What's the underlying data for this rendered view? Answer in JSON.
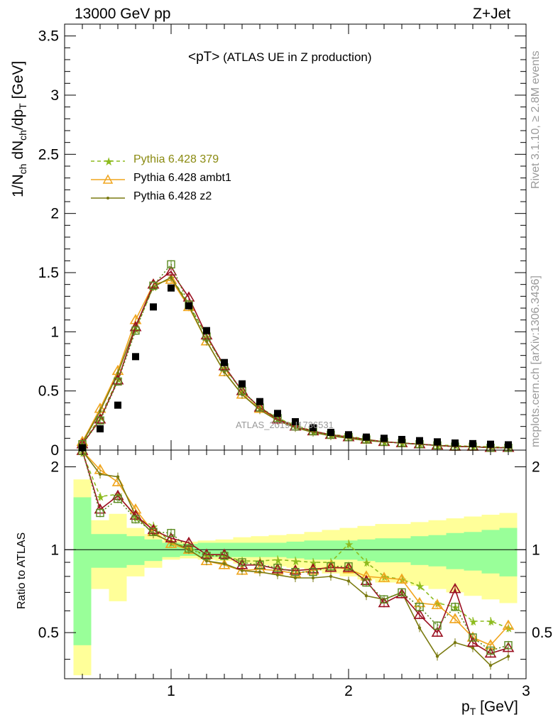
{
  "header": {
    "left": "13000 GeV pp",
    "right": "Z+Jet"
  },
  "side_labels": {
    "rivet": "Rivet 3.1.10, ≥ 2.8M events",
    "mcplots": "mcplots.cern.ch [arXiv:1306.3436]"
  },
  "watermark": "ATLAS_2019_I1736531",
  "annotation": {
    "main": "<pT>",
    "sub": " (ATLAS UE in Z production)"
  },
  "axis": {
    "main_ylabel_parts": {
      "a": "1/N",
      "b": "ch",
      "c": " dN",
      "d": "ch",
      "e": "/dp",
      "f": "T",
      "g": " [GeV]"
    },
    "ratio_ylabel": "Ratio to ATLAS",
    "xlabel_parts": {
      "a": "p",
      "b": "T",
      "c": " [GeV]"
    }
  },
  "colors": {
    "band_inner": "#99ff99",
    "band_outer": "#ffff99",
    "data": "#000000",
    "p379": "#8dbb1e",
    "ambt1": "#f0a51e",
    "z2": "#7a7a10",
    "dark": "#9a1020",
    "green_dark": "#5a8a20"
  },
  "legend": [
    {
      "label": "Pythia 6.428 379",
      "color": "#8dbb1e",
      "style": "dashed",
      "marker": "star"
    },
    {
      "label": "Pythia 6.428 ambt1",
      "color": "#f0a51e",
      "style": "solid",
      "marker": "triangle"
    },
    {
      "label": "Pythia 6.428 z2",
      "color": "#7a7a10",
      "style": "solid",
      "marker": "dot"
    }
  ],
  "chart_data": {
    "type": "line",
    "x_range": [
      0.4,
      3.0
    ],
    "main_ylim": [
      0,
      3.6
    ],
    "ratio_ylim": [
      0.34,
      2.3
    ],
    "x_ticks": [
      1,
      2,
      3
    ],
    "main_y_ticks": [
      0,
      0.5,
      1,
      1.5,
      2,
      2.5,
      3,
      3.5
    ],
    "main_y_tick_labels": [
      "0",
      "0.5",
      "1",
      "1.5",
      "2",
      "2.5",
      "3",
      "3.5"
    ],
    "ratio_y_ticks": [
      0.5,
      1,
      2
    ],
    "ratio_y_tick_labels": [
      "0.5",
      "1",
      "2"
    ],
    "x": [
      0.5,
      0.6,
      0.7,
      0.8,
      0.9,
      1.0,
      1.1,
      1.2,
      1.3,
      1.4,
      1.5,
      1.6,
      1.7,
      1.8,
      1.9,
      2.0,
      2.1,
      2.2,
      2.3,
      2.4,
      2.5,
      2.6,
      2.7,
      2.8,
      2.9
    ],
    "atlas": [
      0.02,
      0.18,
      0.38,
      0.79,
      1.21,
      1.37,
      1.22,
      1.01,
      0.74,
      0.56,
      0.41,
      0.31,
      0.24,
      0.19,
      0.15,
      0.13,
      0.11,
      0.1,
      0.09,
      0.08,
      0.07,
      0.06,
      0.055,
      0.05,
      0.045
    ],
    "band_inner_pct": [
      0.55,
      0.14,
      0.14,
      0.12,
      0.09,
      0.06,
      0.05,
      0.06,
      0.06,
      0.06,
      0.06,
      0.06,
      0.07,
      0.08,
      0.08,
      0.08,
      0.09,
      0.1,
      0.1,
      0.12,
      0.13,
      0.15,
      0.16,
      0.18,
      0.2
    ],
    "band_outer_pct": [
      0.8,
      0.28,
      0.35,
      0.2,
      0.14,
      0.08,
      0.07,
      0.08,
      0.09,
      0.11,
      0.12,
      0.13,
      0.14,
      0.16,
      0.18,
      0.2,
      0.22,
      0.24,
      0.24,
      0.26,
      0.28,
      0.3,
      0.32,
      0.34,
      0.36
    ],
    "main_series": [
      {
        "label": "Pythia 6.428 379",
        "color": "#8dbb1e",
        "dash": "5,4",
        "marker": "star",
        "values": [
          0.05,
          0.28,
          0.6,
          1.02,
          1.38,
          1.46,
          1.24,
          0.96,
          0.7,
          0.5,
          0.36,
          0.27,
          0.21,
          0.16,
          0.13,
          0.12,
          0.09,
          0.07,
          0.06,
          0.05,
          0.04,
          0.04,
          0.03,
          0.03,
          0.02
        ]
      },
      {
        "label": "Pythia 6.428 ambt1",
        "color": "#f0a51e",
        "dash": "",
        "marker": "triangle",
        "values": [
          0.07,
          0.35,
          0.67,
          1.1,
          1.4,
          1.44,
          1.21,
          0.92,
          0.66,
          0.47,
          0.35,
          0.26,
          0.2,
          0.16,
          0.13,
          0.11,
          0.09,
          0.07,
          0.06,
          0.05,
          0.04,
          0.03,
          0.03,
          0.02,
          0.02
        ]
      },
      {
        "label": "Pythia 6.428 z2",
        "color": "#7a7a10",
        "dash": "",
        "marker": "dot",
        "values": [
          0.06,
          0.33,
          0.65,
          1.05,
          1.38,
          1.46,
          1.22,
          0.92,
          0.66,
          0.47,
          0.34,
          0.25,
          0.19,
          0.15,
          0.12,
          0.1,
          0.08,
          0.07,
          0.06,
          0.05,
          0.04,
          0.03,
          0.03,
          0.02,
          0.02
        ]
      },
      {
        "label": "",
        "color": "#9a1020",
        "dash": "",
        "marker": "triangle",
        "values": [
          0.05,
          0.26,
          0.59,
          1.04,
          1.4,
          1.51,
          1.29,
          0.97,
          0.71,
          0.5,
          0.36,
          0.26,
          0.2,
          0.16,
          0.13,
          0.11,
          0.09,
          0.07,
          0.06,
          0.05,
          0.04,
          0.03,
          0.03,
          0.02,
          0.02
        ]
      },
      {
        "label": "",
        "color": "#5a8a20",
        "dash": "2,3",
        "marker": "square",
        "values": [
          0.05,
          0.25,
          0.58,
          1.01,
          1.39,
          1.57,
          1.23,
          0.96,
          0.7,
          0.5,
          0.36,
          0.27,
          0.2,
          0.16,
          0.13,
          0.11,
          0.09,
          0.07,
          0.06,
          0.05,
          0.04,
          0.03,
          0.03,
          0.02,
          0.02
        ]
      }
    ],
    "ratio_series": [
      {
        "label": "Pythia 6.428 379",
        "color": "#8dbb1e",
        "dash": "5,4",
        "marker": "star",
        "values": [
          2.25,
          1.56,
          1.59,
          1.31,
          1.22,
          1.06,
          1.02,
          0.95,
          0.95,
          0.91,
          0.91,
          0.92,
          0.91,
          0.9,
          0.9,
          1.05,
          0.9,
          0.8,
          0.78,
          0.74,
          0.64,
          0.62,
          0.55,
          0.55,
          0.52
        ]
      },
      {
        "label": "Pythia 6.428 ambt1",
        "color": "#f0a51e",
        "dash": "",
        "marker": "triangle",
        "values": [
          2.3,
          1.95,
          1.76,
          1.4,
          1.16,
          1.05,
          1.0,
          0.91,
          0.88,
          0.84,
          0.85,
          0.84,
          0.82,
          0.84,
          0.87,
          0.85,
          0.8,
          0.79,
          0.78,
          0.64,
          0.63,
          0.56,
          0.48,
          0.45,
          0.53
        ]
      },
      {
        "label": "Pythia 6.428 z2",
        "color": "#7a7a10",
        "dash": "",
        "marker": "dot",
        "values": [
          2.3,
          1.88,
          1.84,
          1.33,
          1.14,
          1.07,
          1.0,
          0.91,
          0.89,
          0.84,
          0.83,
          0.81,
          0.79,
          0.79,
          0.8,
          0.77,
          0.68,
          0.66,
          0.7,
          0.52,
          0.41,
          0.46,
          0.44,
          0.38,
          0.41
        ]
      },
      {
        "label": "",
        "color": "#9a1020",
        "dash": "",
        "marker": "triangle",
        "values": [
          2.3,
          1.4,
          1.57,
          1.33,
          1.18,
          1.1,
          1.06,
          0.96,
          0.96,
          0.88,
          0.88,
          0.85,
          0.84,
          0.85,
          0.86,
          0.86,
          0.77,
          0.64,
          0.69,
          0.58,
          0.5,
          0.72,
          0.46,
          0.42,
          0.44
        ]
      },
      {
        "label": "",
        "color": "#5a8a20",
        "dash": "2,3",
        "marker": "square",
        "values": [
          2.3,
          1.36,
          1.53,
          1.29,
          1.16,
          1.15,
          1.01,
          0.95,
          0.95,
          0.9,
          0.88,
          0.86,
          0.83,
          0.83,
          0.87,
          0.87,
          0.76,
          0.66,
          0.7,
          0.62,
          0.53,
          0.62,
          0.48,
          0.43,
          0.45
        ]
      }
    ]
  }
}
